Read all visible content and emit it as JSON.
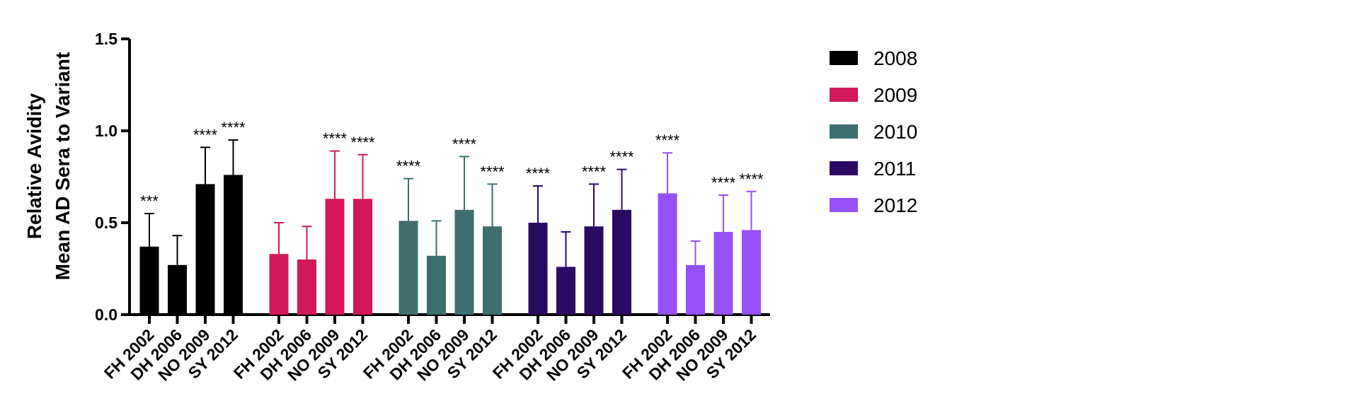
{
  "chart_data": {
    "type": "bar",
    "ylabel_lines": [
      "Relative Avidity",
      "Mean AD Sera to Variant"
    ],
    "ylim": [
      0,
      1.5
    ],
    "yticks": [
      "0.0",
      "0.5",
      "1.0",
      "1.5"
    ],
    "ytick_values": [
      0,
      0.5,
      1.0,
      1.5
    ],
    "categories": [
      "FH 2002",
      "DH 2006",
      "NO 2009",
      "SY 2012"
    ],
    "error_bars": "upper",
    "grid": false,
    "legend_position": "right",
    "series": [
      {
        "name": "2008",
        "color": "#000000",
        "values": [
          0.37,
          0.27,
          0.71,
          0.76
        ],
        "errors": [
          0.18,
          0.16,
          0.2,
          0.19
        ],
        "significance": [
          "***",
          "",
          "****",
          "****"
        ]
      },
      {
        "name": "2009",
        "color": "#D2185A",
        "values": [
          0.33,
          0.3,
          0.63,
          0.63
        ],
        "errors": [
          0.17,
          0.18,
          0.26,
          0.24
        ],
        "significance": [
          "",
          "",
          "****",
          "****"
        ]
      },
      {
        "name": "2010",
        "color": "#3E6E6E",
        "values": [
          0.51,
          0.32,
          0.57,
          0.48
        ],
        "errors": [
          0.23,
          0.19,
          0.29,
          0.23
        ],
        "significance": [
          "****",
          "",
          "****",
          "****"
        ]
      },
      {
        "name": "2011",
        "color": "#2B0A64",
        "values": [
          0.5,
          0.26,
          0.48,
          0.57
        ],
        "errors": [
          0.2,
          0.19,
          0.23,
          0.22
        ],
        "significance": [
          "****",
          "",
          "****",
          "****"
        ]
      },
      {
        "name": "2012",
        "color": "#9551F5",
        "values": [
          0.66,
          0.27,
          0.45,
          0.46
        ],
        "errors": [
          0.22,
          0.13,
          0.2,
          0.21
        ],
        "significance": [
          "****",
          "",
          "****",
          "****"
        ]
      }
    ]
  }
}
